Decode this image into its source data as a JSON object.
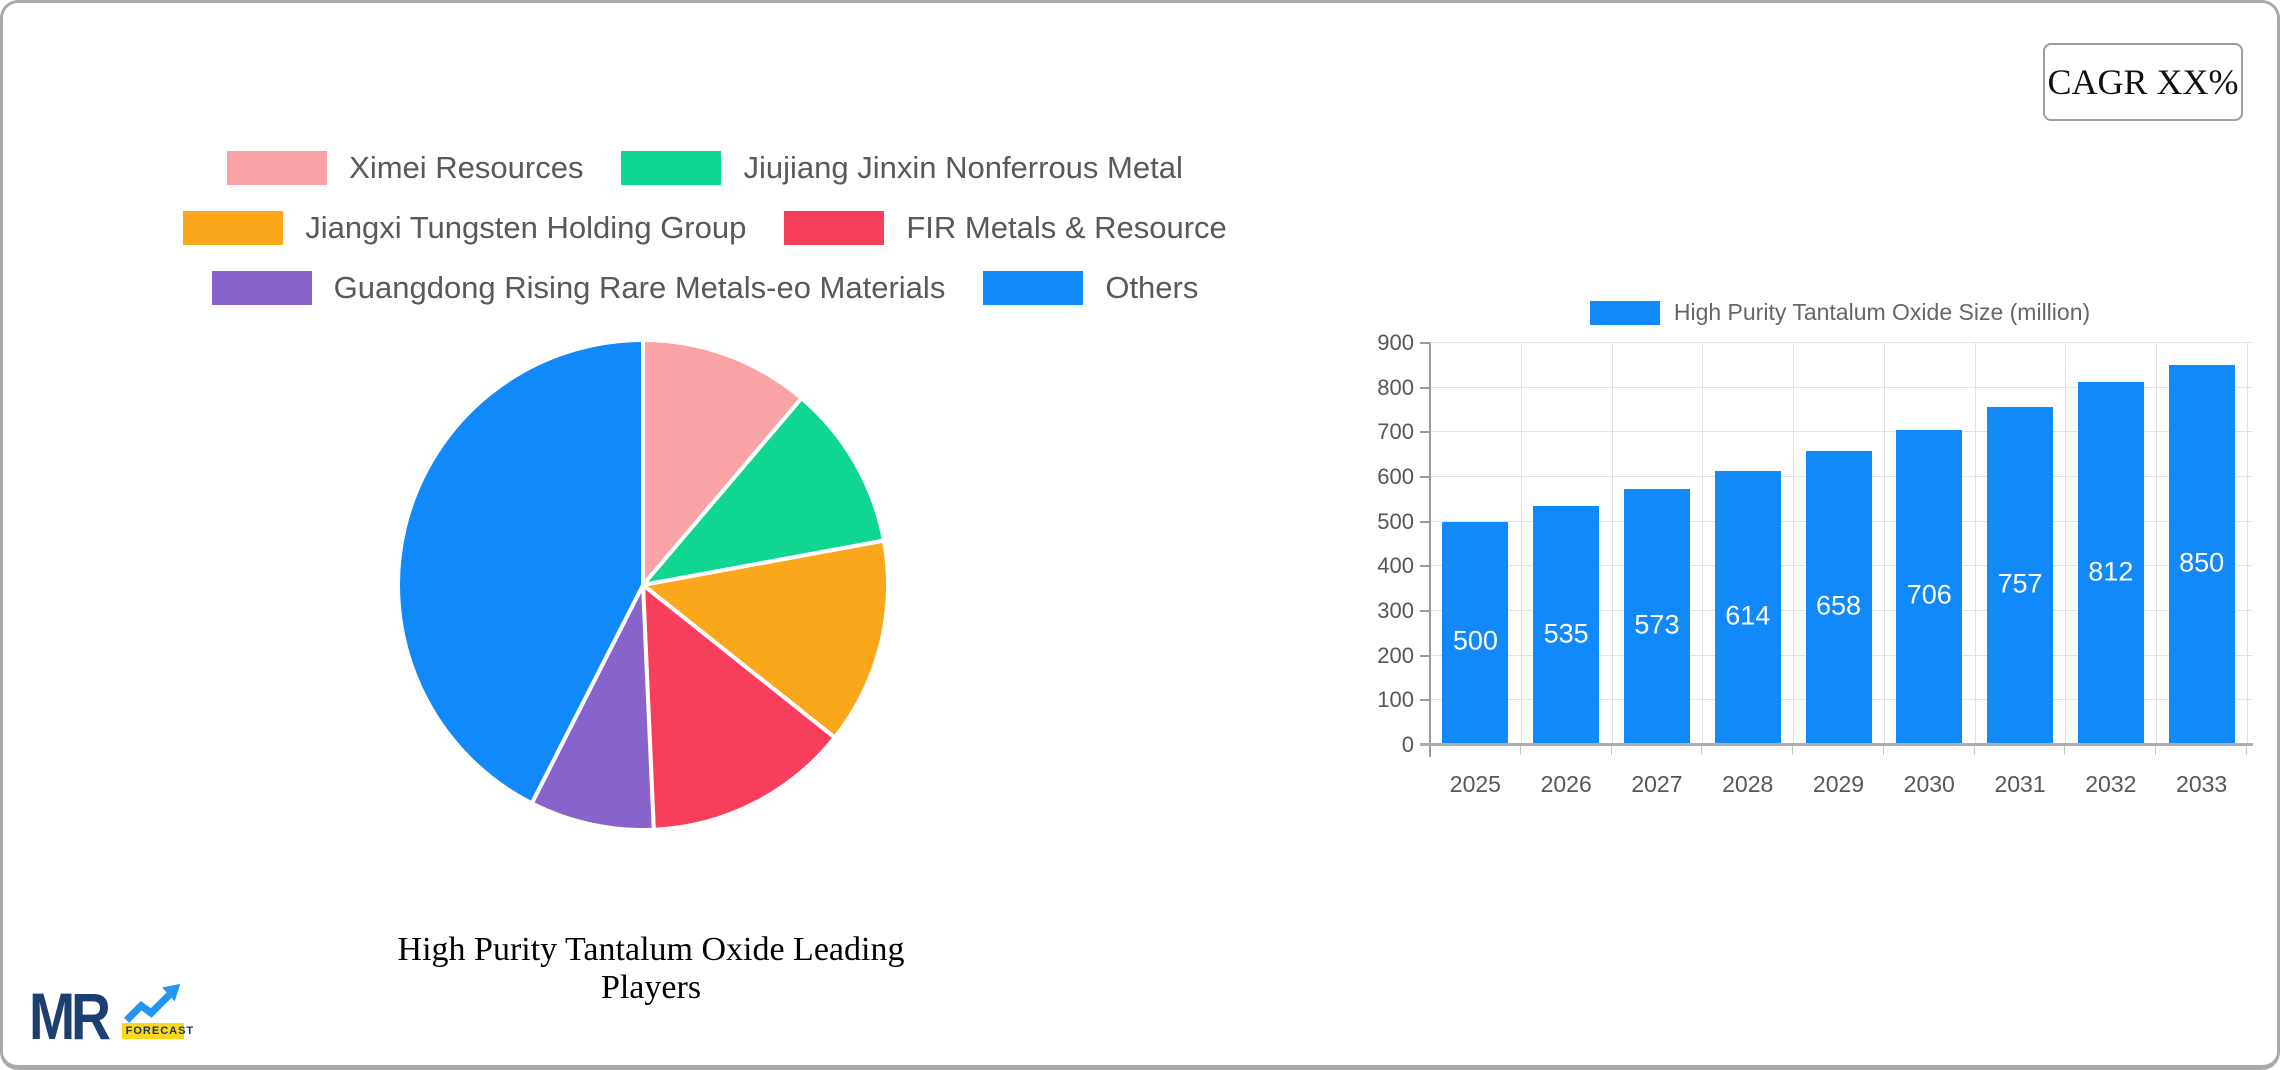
{
  "cagr_label": "CAGR XX%",
  "logo": {
    "text": "MR",
    "badge": "FORECAST"
  },
  "chart_data": [
    {
      "type": "pie",
      "title": "High Purity Tantalum Oxide Leading Players",
      "labels": [
        "Ximei Resources",
        "Jiujiang Jinxin Nonferrous Metal",
        "Jiangxi Tungsten Holding Group",
        "FIR Metals & Resource",
        "Guangdong Rising Rare Metals-eo Materials",
        "Others"
      ],
      "values": [
        11.2,
        10.9,
        13.6,
        13.6,
        8.2,
        42.5
      ],
      "colors": [
        "#F9A3A6",
        "#0FD691",
        "#FAA71B",
        "#F73E5C",
        "#8763CB",
        "#1189FA"
      ],
      "legend_position": "top",
      "start_angle_deg": -90,
      "direction": "clockwise"
    },
    {
      "type": "bar",
      "legend": [
        "High Purity Tantalum Oxide Size (million)"
      ],
      "categories": [
        "2025",
        "2026",
        "2027",
        "2028",
        "2029",
        "2030",
        "2031",
        "2032",
        "2033"
      ],
      "values": [
        500,
        535,
        573,
        614,
        658,
        706,
        757,
        812,
        850
      ],
      "bar_color": "#1189FA",
      "ylim": [
        0,
        900
      ],
      "ytick_step": 100,
      "grid": true,
      "value_labels": "inside-white",
      "legend_position": "top"
    }
  ]
}
